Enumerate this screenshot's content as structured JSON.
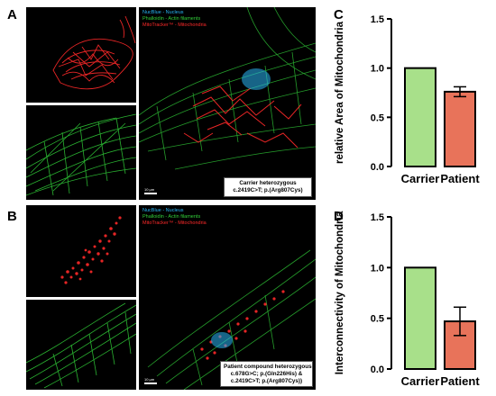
{
  "panels": {
    "A": {
      "letter": "A",
      "legend": [
        "NucBlue - Nucleus",
        "Phalloidin - Actin filaments",
        "MitoTracker™ - Mitochondria"
      ],
      "caption": [
        "Carrier heterozygous",
        "c.2419C>T; p.(Arg807Cys)"
      ],
      "scale_label": "10 µm"
    },
    "B": {
      "letter": "B",
      "legend": [
        "NucBlue - Nucleus",
        "Phalloidin - Actin filaments",
        "MitoTracker™ - Mitochondria"
      ],
      "caption": [
        "Patient compound heterozygous",
        "c.678G>C; p.(Gln226His) &",
        "c.2419C>T; p.(Arg807Cys))"
      ],
      "scale_label": "10 µm"
    },
    "C": {
      "letter": "C"
    },
    "D": {
      "letter": "D"
    }
  },
  "colors": {
    "nucleus": "#29b6f6",
    "actin": "#32d13a",
    "mitochondria": "#ff2a2a",
    "carrier_bar": "#a8e08a",
    "patient_bar": "#e8735a"
  },
  "chart_data": [
    {
      "id": "C",
      "type": "bar",
      "categories": [
        "Carrier",
        "Patient"
      ],
      "values": [
        1.0,
        0.76
      ],
      "error": [
        0,
        0.05
      ],
      "ylabel": "relative Area of Mitochondria",
      "ylim": [
        0,
        1.5
      ],
      "yticks": [
        "0.0",
        "0.5",
        "1.0",
        "1.5"
      ],
      "tick_values": [
        0,
        0.5,
        1.0,
        1.5
      ]
    },
    {
      "id": "D",
      "type": "bar",
      "categories": [
        "Carrier",
        "Patient"
      ],
      "values": [
        1.0,
        0.47
      ],
      "error": [
        0,
        0.14
      ],
      "ylabel": "Interconnectivity of Mitochondria",
      "ylim": [
        0,
        1.5
      ],
      "yticks": [
        "0.0",
        "0.5",
        "1.0",
        "1.5"
      ],
      "tick_values": [
        0,
        0.5,
        1.0,
        1.5
      ]
    }
  ]
}
